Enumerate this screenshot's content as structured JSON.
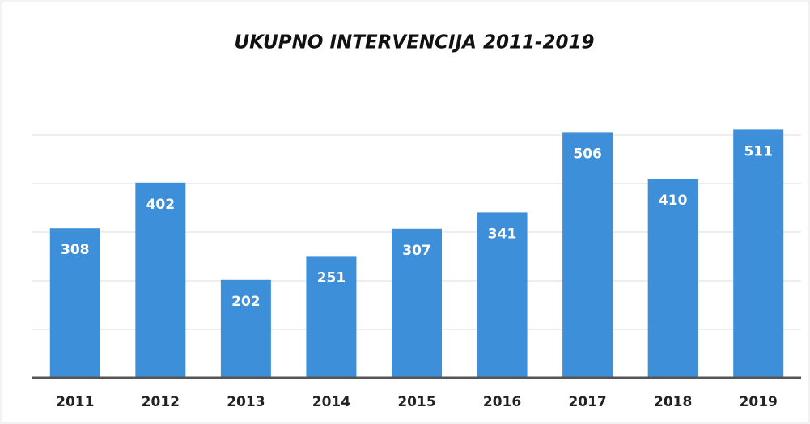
{
  "chart_data": {
    "type": "bar",
    "title": "UKUPNO INTERVENCIJA 2011-2019",
    "categories": [
      "2011",
      "2012",
      "2013",
      "2014",
      "2015",
      "2016",
      "2017",
      "2018",
      "2019"
    ],
    "values": [
      308,
      402,
      202,
      251,
      307,
      341,
      506,
      410,
      511
    ],
    "color": "#3d8fd9",
    "ylim": [
      0,
      600
    ],
    "gridlines": [
      100,
      200,
      300,
      400,
      500
    ],
    "grid": true
  }
}
